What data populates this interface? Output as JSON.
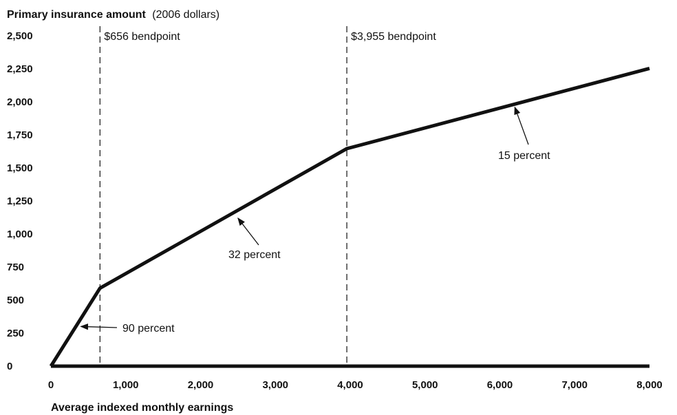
{
  "chart_data": {
    "type": "line",
    "ylabel": "Primary insurance amount",
    "ylabel_unit": "(2006 dollars)",
    "xlabel": "Average indexed monthly earnings",
    "xlim": [
      0,
      8000
    ],
    "ylim": [
      0,
      2500
    ],
    "x_ticks": [
      0,
      1000,
      2000,
      3000,
      4000,
      5000,
      6000,
      7000,
      8000
    ],
    "x_tick_labels": [
      "0",
      "1,000",
      "2,000",
      "3,000",
      "4,000",
      "5,000",
      "6,000",
      "7,000",
      "8,000"
    ],
    "y_ticks": [
      0,
      250,
      500,
      750,
      1000,
      1250,
      1500,
      1750,
      2000,
      2250,
      2500
    ],
    "y_tick_labels": [
      "0",
      "250",
      "500",
      "750",
      "1,000",
      "1,250",
      "1,500",
      "1,750",
      "2,000",
      "2,250",
      "2,500"
    ],
    "grid": false,
    "series": [
      {
        "x": [
          0,
          656,
          3955,
          8000
        ],
        "y": [
          0,
          590,
          1646,
          2253
        ]
      }
    ],
    "bendpoints": [
      {
        "x": 656,
        "label": "$656 bendpoint"
      },
      {
        "x": 3955,
        "label": "$3,955 bendpoint"
      }
    ],
    "annotations": [
      {
        "text": "90 percent",
        "arrow_to": [
          400,
          300
        ]
      },
      {
        "text": "32 percent",
        "arrow_to": [
          2500,
          1120
        ]
      },
      {
        "text": "15 percent",
        "arrow_to": [
          6200,
          1960
        ]
      }
    ]
  }
}
